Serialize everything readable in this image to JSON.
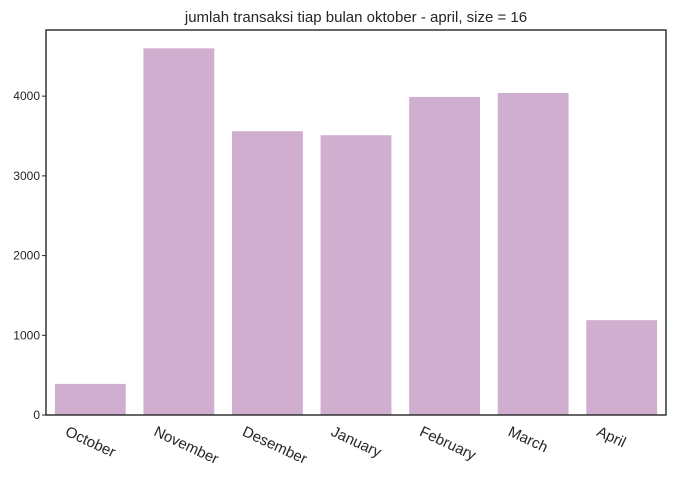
{
  "chart_data": {
    "type": "bar",
    "title": "jumlah transaksi tiap bulan oktober - april, size = 16",
    "xlabel": "",
    "ylabel": "",
    "categories": [
      "October",
      "November",
      "Desember",
      "January",
      "February",
      "March",
      "April"
    ],
    "values": [
      390,
      4600,
      3560,
      3510,
      3990,
      4040,
      1190
    ],
    "ylim": [
      0,
      4830
    ],
    "yticks": [
      0,
      1000,
      2000,
      3000,
      4000
    ],
    "bar_color": "#d0aecf",
    "grid": false,
    "legend": "none"
  }
}
